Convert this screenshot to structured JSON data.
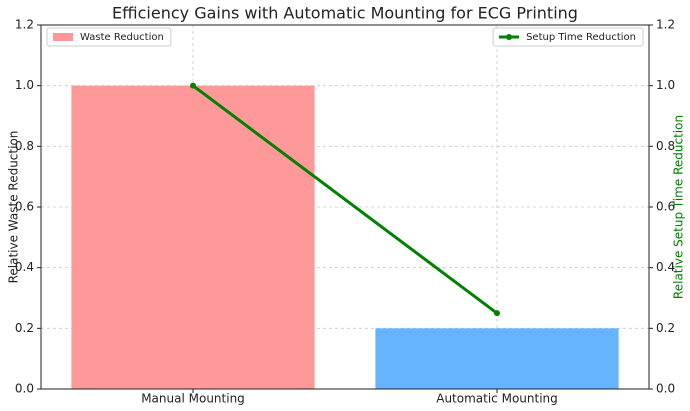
{
  "chart_data": {
    "type": "bar-line",
    "title": "Efficiency Gains with Automatic Mounting for ECG Printing",
    "categories": [
      "Manual Mounting",
      "Automatic Mounting"
    ],
    "series": [
      {
        "name": "Waste Reduction",
        "type": "bar",
        "colors": [
          "#ff9999",
          "#66b3ff"
        ],
        "values": [
          1.0,
          0.2
        ]
      },
      {
        "name": "Setup Time Reduction",
        "type": "line",
        "color": "#008000",
        "axis": "y2",
        "values": [
          1.0,
          0.25
        ]
      }
    ],
    "ylabel": "Relative Waste Reduction",
    "y2label": "Relative Setup Time Reduction",
    "ylim": [
      0,
      1.2
    ],
    "yticks": [
      {
        "value": 0,
        "label": "0.0"
      },
      0.2,
      0.4,
      0.6,
      0.8,
      {
        "value": 1,
        "label": "1.0"
      },
      1.2
    ],
    "y2lim": [
      0,
      1.2
    ],
    "y2ticks": [
      {
        "value": 0,
        "label": "0.0"
      },
      0.2,
      0.4,
      0.6,
      0.8,
      {
        "value": 1,
        "label": "1.0"
      },
      1.2
    ],
    "grid": true,
    "legend": "upper left",
    "y2legend": "upper right"
  }
}
